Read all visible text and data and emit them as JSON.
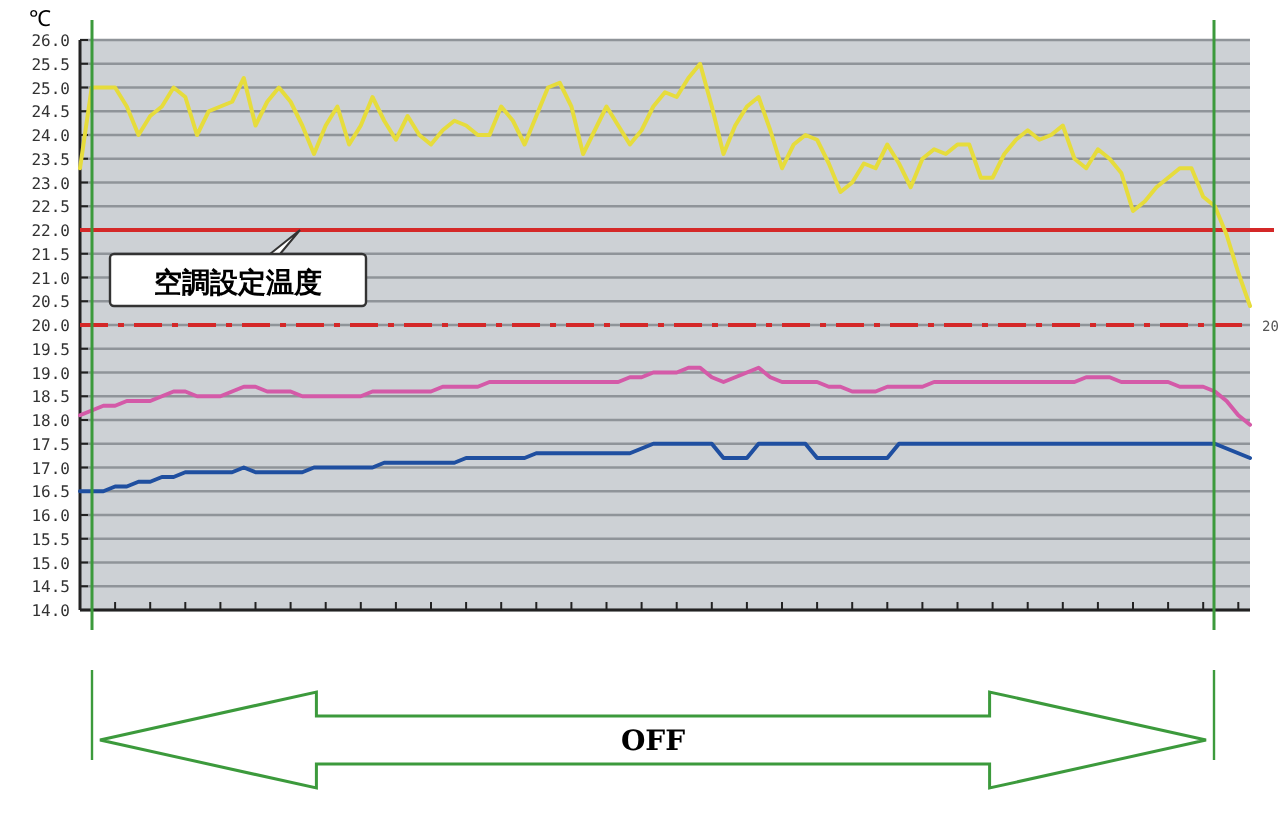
{
  "chart_data": {
    "type": "line",
    "ylabel": "℃",
    "ylim": [
      14,
      26
    ],
    "yticks": [
      {
        "value": 14,
        "label": "14.0"
      },
      {
        "value": 14.5,
        "label": "14.5"
      },
      {
        "value": 15,
        "label": "15.0"
      },
      {
        "value": 15.5,
        "label": "15.5"
      },
      {
        "value": 16,
        "label": "16.0"
      },
      {
        "value": 16.5,
        "label": "16.5"
      },
      {
        "value": 17,
        "label": "17.0"
      },
      {
        "value": 17.5,
        "label": "17.5"
      },
      {
        "value": 18,
        "label": "18.0"
      },
      {
        "value": 18.5,
        "label": "18.5"
      },
      {
        "value": 19,
        "label": "19.0"
      },
      {
        "value": 19.5,
        "label": "19.5"
      },
      {
        "value": 20,
        "label": "20.0"
      },
      {
        "value": 20.5,
        "label": "20.5"
      },
      {
        "value": 21,
        "label": "21.0"
      },
      {
        "value": 21.5,
        "label": "21.5"
      },
      {
        "value": 22,
        "label": "22.0"
      },
      {
        "value": 22.5,
        "label": "22.5"
      },
      {
        "value": 23,
        "label": "23.0"
      },
      {
        "value": 23.5,
        "label": "23.5"
      },
      {
        "value": 24,
        "label": "24.0"
      },
      {
        "value": 24.5,
        "label": "24.5"
      },
      {
        "value": 25,
        "label": "25.0"
      },
      {
        "value": 25.5,
        "label": "25.5"
      },
      {
        "value": 26,
        "label": "26.0"
      }
    ],
    "categories": [
      null,
      null,
      null,
      null,
      null,
      null,
      null,
      null,
      null,
      null,
      null,
      null,
      null,
      null,
      null,
      null,
      null,
      null,
      null,
      null,
      null,
      null,
      null,
      null,
      null,
      null,
      null,
      null,
      null,
      null,
      null,
      null,
      null,
      null,
      null,
      null,
      null,
      null,
      null,
      null,
      null,
      null,
      null,
      null,
      null,
      null,
      null,
      null,
      null,
      null,
      null,
      null,
      null,
      null,
      null,
      null,
      null,
      null,
      null,
      null,
      null,
      null,
      null,
      null,
      null,
      null,
      null,
      null,
      null,
      null,
      null,
      null,
      null,
      null,
      null,
      null,
      null,
      null,
      null,
      null,
      null,
      null,
      null,
      null,
      null,
      null,
      null,
      null,
      null,
      null,
      null,
      null,
      null,
      null,
      null,
      null,
      null,
      null,
      null,
      null,
      null
    ],
    "tick_labels": "y",
    "grid": "y",
    "marker": "none",
    "series": [
      {
        "color": "#e6dc3c",
        "values": [
          23.3,
          25.0,
          25.0,
          25.0,
          24.6,
          24.0,
          24.4,
          24.6,
          25.0,
          24.8,
          24.0,
          24.5,
          24.6,
          24.7,
          25.2,
          24.2,
          24.7,
          25.0,
          24.7,
          24.2,
          23.6,
          24.2,
          24.6,
          23.8,
          24.2,
          24.8,
          24.3,
          23.9,
          24.4,
          24.0,
          23.8,
          24.1,
          24.3,
          24.2,
          24.0,
          24.0,
          24.6,
          24.3,
          23.8,
          24.4,
          25.0,
          25.1,
          24.6,
          23.6,
          24.1,
          24.6,
          24.2,
          23.8,
          24.1,
          24.6,
          24.9,
          24.8,
          25.2,
          25.5,
          24.6,
          23.6,
          24.2,
          24.6,
          24.8,
          24.1,
          23.3,
          23.8,
          24.0,
          23.9,
          23.4,
          22.8,
          23.0,
          23.4,
          23.3,
          23.8,
          23.4,
          22.9,
          23.5,
          23.7,
          23.6,
          23.8,
          23.8,
          23.1,
          23.1,
          23.6,
          23.9,
          24.1,
          23.9,
          24.0,
          24.2,
          23.5,
          23.3,
          23.7,
          23.5,
          23.2,
          22.4,
          22.6,
          22.9,
          23.1,
          23.3,
          23.3,
          22.7,
          22.5,
          21.9,
          21.1,
          20.4
        ]
      },
      {
        "color": "#d45aa8",
        "values": [
          18.1,
          18.2,
          18.3,
          18.3,
          18.4,
          18.4,
          18.4,
          18.5,
          18.6,
          18.6,
          18.5,
          18.5,
          18.5,
          18.6,
          18.7,
          18.7,
          18.6,
          18.6,
          18.6,
          18.5,
          18.5,
          18.5,
          18.5,
          18.5,
          18.5,
          18.6,
          18.6,
          18.6,
          18.6,
          18.6,
          18.6,
          18.7,
          18.7,
          18.7,
          18.7,
          18.8,
          18.8,
          18.8,
          18.8,
          18.8,
          18.8,
          18.8,
          18.8,
          18.8,
          18.8,
          18.8,
          18.8,
          18.9,
          18.9,
          19.0,
          19.0,
          19.0,
          19.1,
          19.1,
          18.9,
          18.8,
          18.9,
          19.0,
          19.1,
          18.9,
          18.8,
          18.8,
          18.8,
          18.8,
          18.7,
          18.7,
          18.6,
          18.6,
          18.6,
          18.7,
          18.7,
          18.7,
          18.7,
          18.8,
          18.8,
          18.8,
          18.8,
          18.8,
          18.8,
          18.8,
          18.8,
          18.8,
          18.8,
          18.8,
          18.8,
          18.8,
          18.9,
          18.9,
          18.9,
          18.8,
          18.8,
          18.8,
          18.8,
          18.8,
          18.7,
          18.7,
          18.7,
          18.6,
          18.4,
          18.1,
          17.9
        ]
      },
      {
        "color": "#1f4fa0",
        "values": [
          16.5,
          16.5,
          16.5,
          16.6,
          16.6,
          16.7,
          16.7,
          16.8,
          16.8,
          16.9,
          16.9,
          16.9,
          16.9,
          16.9,
          17.0,
          16.9,
          16.9,
          16.9,
          16.9,
          16.9,
          17.0,
          17.0,
          17.0,
          17.0,
          17.0,
          17.0,
          17.1,
          17.1,
          17.1,
          17.1,
          17.1,
          17.1,
          17.1,
          17.2,
          17.2,
          17.2,
          17.2,
          17.2,
          17.2,
          17.3,
          17.3,
          17.3,
          17.3,
          17.3,
          17.3,
          17.3,
          17.3,
          17.3,
          17.4,
          17.5,
          17.5,
          17.5,
          17.5,
          17.5,
          17.5,
          17.2,
          17.2,
          17.2,
          17.5,
          17.5,
          17.5,
          17.5,
          17.5,
          17.2,
          17.2,
          17.2,
          17.2,
          17.2,
          17.2,
          17.2,
          17.5,
          17.5,
          17.5,
          17.5,
          17.5,
          17.5,
          17.5,
          17.5,
          17.5,
          17.5,
          17.5,
          17.5,
          17.5,
          17.5,
          17.5,
          17.5,
          17.5,
          17.5,
          17.5,
          17.5,
          17.5,
          17.5,
          17.5,
          17.5,
          17.5,
          17.5,
          17.5,
          17.5,
          17.4,
          17.3,
          17.2
        ]
      }
    ],
    "ref_lines": [
      {
        "axis": "y",
        "value": 22,
        "label": "空調設定温度",
        "color": "#d42828",
        "line_style": "solid"
      },
      {
        "axis": "y",
        "value": 20,
        "label": "20",
        "color": "#d42828",
        "line_style": "dashed"
      }
    ],
    "annotations": [
      "OFF"
    ]
  }
}
